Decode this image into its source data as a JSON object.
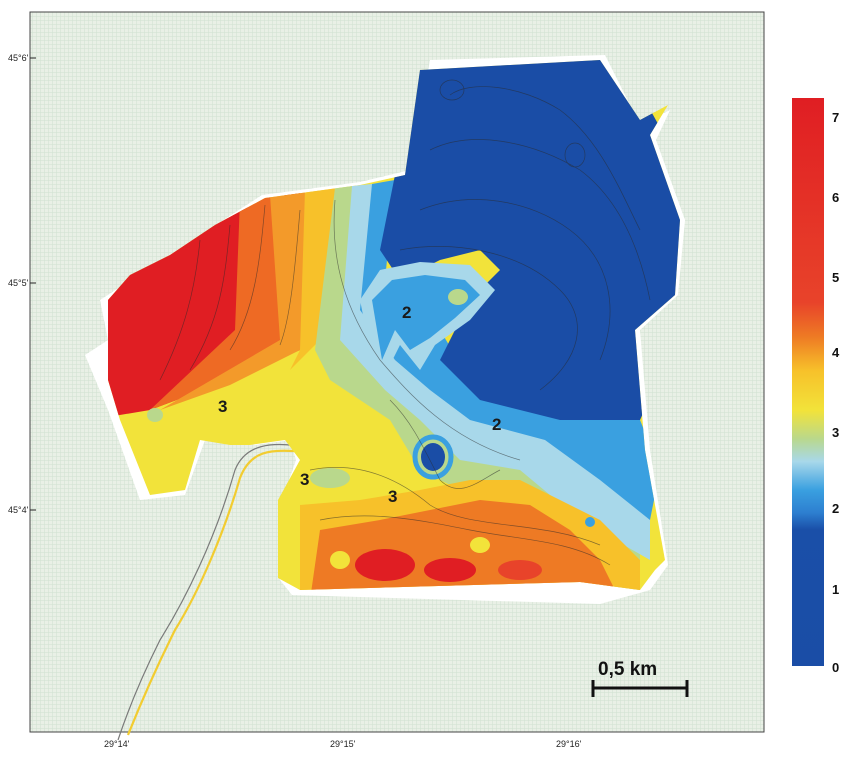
{
  "map": {
    "latitude_labels": [
      "45°6'",
      "45°5'",
      "45°4'"
    ],
    "longitude_labels": [
      "29°14'",
      "29°15'",
      "29°16'"
    ],
    "contour_labels": [
      "2",
      "2",
      "3",
      "3",
      "3"
    ],
    "scale_bar": {
      "label": "0,5 km"
    }
  },
  "legend": {
    "ticks": [
      "7",
      "6",
      "5",
      "4",
      "3",
      "2",
      "1",
      "0"
    ],
    "min": 0,
    "max": 7,
    "colors": {
      "v0": "#1a4da6",
      "v1": "#1a4fa8",
      "v1_5": "#2d7fd0",
      "v2": "#3aa0e0",
      "v2_3": "#a8d8ea",
      "v2_7": "#b9d88c",
      "v3": "#f2e33a",
      "v3_5": "#f7c12a",
      "v4": "#ee7a24",
      "v4_5": "#e8432a",
      "v7": "#e01e23"
    }
  },
  "background": {
    "grid_color": "#cfe1d0",
    "fill_color": "#e9f0e6"
  }
}
